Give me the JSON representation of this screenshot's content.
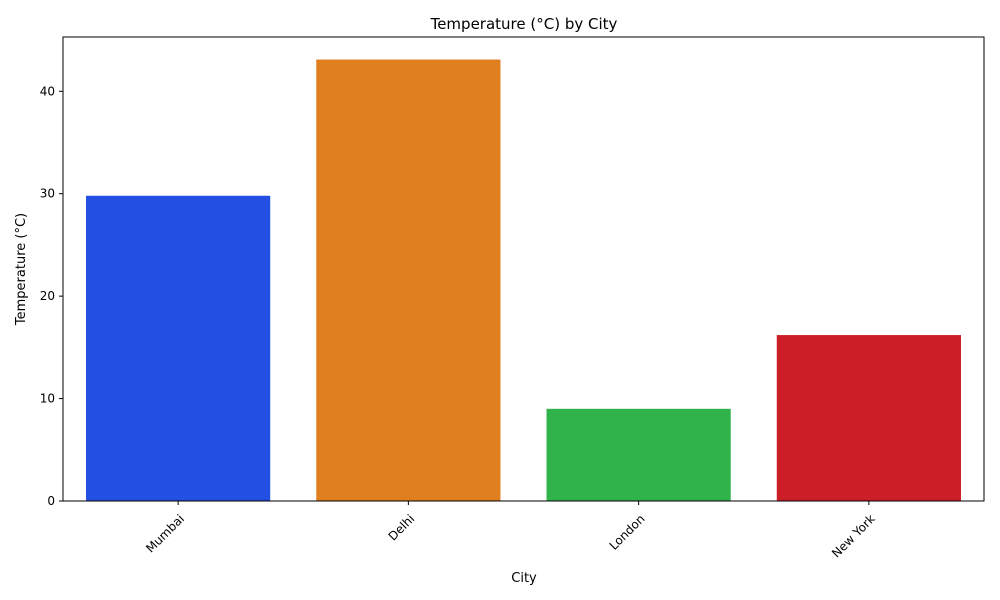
{
  "chart_data": {
    "type": "bar",
    "title": "Temperature (°C) by City",
    "xlabel": "City",
    "ylabel": "Temperature (°C)",
    "categories": [
      "Mumbai",
      "Delhi",
      "London",
      "New York"
    ],
    "values": [
      29.8,
      43.1,
      9.0,
      16.2
    ],
    "colors": [
      "#2350e3",
      "#e07f20",
      "#2fb34a",
      "#cb1e27"
    ],
    "ylim": [
      0,
      45.3
    ],
    "yticks": [
      0,
      10,
      20,
      30,
      40
    ],
    "xtick_rotation": 45,
    "grid": false,
    "legend": "none"
  }
}
